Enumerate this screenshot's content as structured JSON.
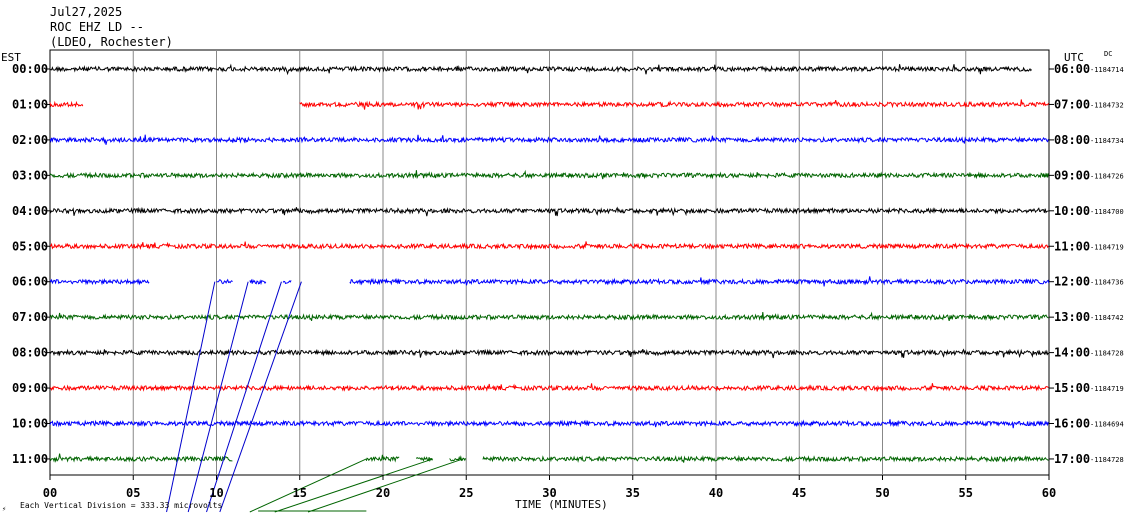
{
  "header": {
    "date": "Jul27,2025",
    "station": "ROC EHZ LD --",
    "network": "(LDEO, Rochester)"
  },
  "chart_data": {
    "type": "line",
    "title": "Jul27,2025",
    "xlabel": "TIME (MINUTES)",
    "left_axis_label": "EST",
    "right_axis_label": "UTC",
    "dc_label": "DC",
    "xlim": [
      0,
      60
    ],
    "x_ticks": [
      "00",
      "05",
      "10",
      "15",
      "20",
      "25",
      "30",
      "35",
      "40",
      "45",
      "50",
      "55",
      "60"
    ],
    "grid": true,
    "footer_note": "Each Vertical Division =  333.33 microvolts",
    "corner_mark": "⚡",
    "series_colors": [
      "#000000",
      "#ff0000",
      "#0000ff",
      "#006400"
    ],
    "rows": [
      {
        "est": "00:00",
        "utc": "06:00",
        "dc": "-1184714",
        "segments": [
          [
            0,
            59
          ]
        ]
      },
      {
        "est": "01:00",
        "utc": "07:00",
        "dc": "-1184732",
        "segments": [
          [
            0,
            2
          ],
          [
            15,
            60
          ]
        ]
      },
      {
        "est": "02:00",
        "utc": "08:00",
        "dc": "-1184734",
        "segments": [
          [
            0,
            60
          ]
        ]
      },
      {
        "est": "03:00",
        "utc": "09:00",
        "dc": "-1184726",
        "segments": [
          [
            0,
            60
          ]
        ]
      },
      {
        "est": "04:00",
        "utc": "10:00",
        "dc": "-1184700",
        "segments": [
          [
            0,
            60
          ]
        ]
      },
      {
        "est": "05:00",
        "utc": "11:00",
        "dc": "-1184719",
        "segments": [
          [
            0,
            60
          ]
        ]
      },
      {
        "est": "06:00",
        "utc": "12:00",
        "dc": "-1184736",
        "segments": [
          [
            0,
            6
          ],
          [
            10,
            11
          ],
          [
            12,
            13
          ],
          [
            14,
            14.5
          ],
          [
            18,
            60
          ]
        ]
      },
      {
        "est": "07:00",
        "utc": "13:00",
        "dc": "-1184742",
        "segments": [
          [
            0,
            60
          ]
        ]
      },
      {
        "est": "08:00",
        "utc": "14:00",
        "dc": "-1184728",
        "segments": [
          [
            0,
            60
          ]
        ]
      },
      {
        "est": "09:00",
        "utc": "15:00",
        "dc": "-1184719",
        "segments": [
          [
            0,
            60
          ]
        ]
      },
      {
        "est": "10:00",
        "utc": "16:00",
        "dc": "-1184694",
        "segments": [
          [
            0,
            60
          ]
        ]
      },
      {
        "est": "11:00",
        "utc": "17:00",
        "dc": "-1184728",
        "segments": [
          [
            0,
            11
          ],
          [
            19,
            21
          ],
          [
            22,
            23
          ],
          [
            24,
            25
          ],
          [
            26,
            60
          ]
        ]
      }
    ]
  }
}
